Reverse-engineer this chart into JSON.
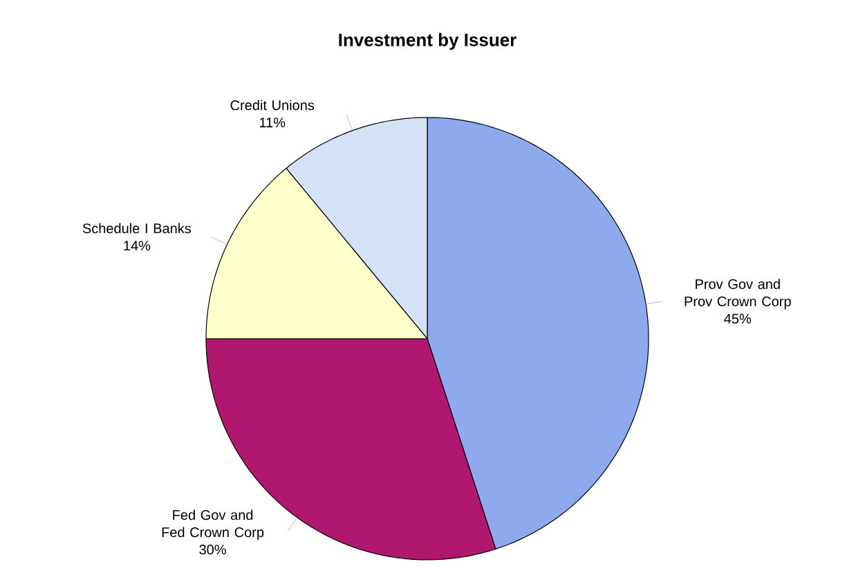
{
  "chart_data": {
    "type": "pie",
    "title": "Investment by Issuer",
    "categories": [
      "Prov Gov and Prov Crown Corp",
      "Fed Gov and Fed Crown Corp",
      "Schedule I Banks",
      "Credit Unions"
    ],
    "values": [
      45,
      30,
      14,
      11
    ],
    "value_labels": [
      "45%",
      "30%",
      "14%",
      "11%"
    ],
    "colors": [
      "#8fa9ee",
      "#b0176e",
      "#ffffcc",
      "#d4e2f8"
    ]
  }
}
